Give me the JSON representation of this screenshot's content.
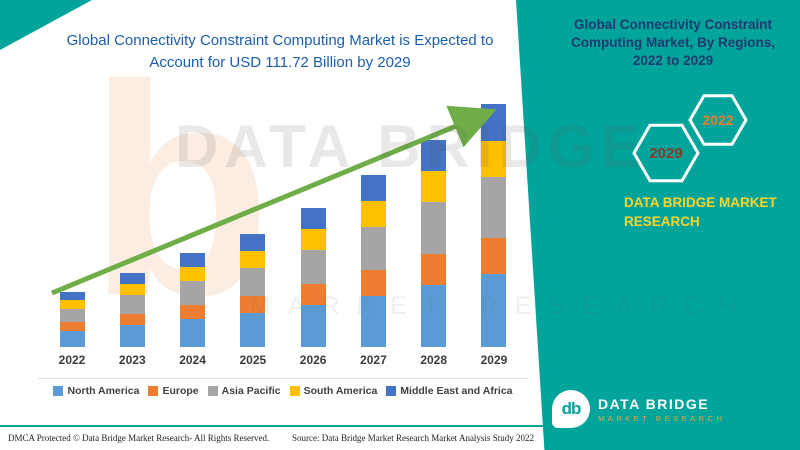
{
  "colors": {
    "teal": "#00A49A",
    "blue": "#1B5EAE",
    "green": "#6FAD47",
    "yellow": "#FFD429",
    "navy": "#1E3A70",
    "hex2029": "#8C3B2A",
    "hex2022": "#E87E2E",
    "logoorange": "#F2A13C"
  },
  "header": {
    "chart_title": "Global Connectivity Constraint Computing Market is Expected to Account for USD 111.72 Billion by 2029"
  },
  "panel": {
    "heading": "Global Connectivity Constraint Computing Market, By Regions, 2022 to 2029",
    "hexagons": [
      {
        "label": "2029"
      },
      {
        "label": "2022"
      }
    ],
    "brand": "DATA BRIDGE MARKET RESEARCH",
    "logo": {
      "monogram": "db",
      "name": "DATA BRIDGE",
      "tagline": "MARKET RESEARCH"
    }
  },
  "watermark": {
    "line1": "DATA BRIDGE",
    "line2": "MARKET RESEARCH",
    "monogram": "b"
  },
  "footer": {
    "dmca": "DMCA Protected © Data Bridge Market Research- All Rights Reserved.",
    "source": "Source: Data Bridge Market Research Market Analysis Study 2022"
  },
  "chart_data": {
    "type": "bar",
    "stacked": true,
    "title": "Global Connectivity Constraint Computing Market is Expected to Account for USD 111.72 Billion by 2029",
    "unit": "USD Billion",
    "total_2029": 111.72,
    "categories": [
      "2022",
      "2023",
      "2024",
      "2025",
      "2026",
      "2027",
      "2028",
      "2029"
    ],
    "series": [
      {
        "name": "North America",
        "color": "#5B9BD5",
        "values": [
          7.5,
          10.2,
          12.9,
          15.6,
          19.2,
          23.7,
          28.5,
          33.5
        ]
      },
      {
        "name": "Europe",
        "color": "#ED7D31",
        "values": [
          3.8,
          5.1,
          6.5,
          7.8,
          9.6,
          11.9,
          14.3,
          16.8
        ]
      },
      {
        "name": "Asia Pacific",
        "color": "#A5A5A5",
        "values": [
          6.3,
          8.5,
          10.8,
          13.0,
          16.0,
          19.8,
          23.8,
          27.9
        ]
      },
      {
        "name": "South America",
        "color": "#FFC000",
        "values": [
          3.8,
          5.1,
          6.5,
          7.8,
          9.6,
          11.9,
          14.3,
          16.8
        ]
      },
      {
        "name": "Middle East and Africa",
        "color": "#4472C4",
        "values": [
          3.8,
          5.1,
          6.4,
          7.8,
          9.6,
          11.7,
          14.2,
          16.7
        ]
      }
    ],
    "trendline": true,
    "legend_position": "bottom",
    "axis_visible": false,
    "ylim": [
      0,
      116
    ]
  }
}
